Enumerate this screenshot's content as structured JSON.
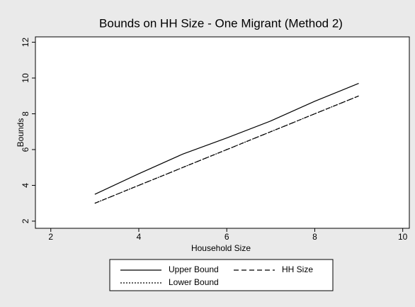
{
  "chart_data": {
    "type": "line",
    "title": "Bounds on HH Size - One Migrant (Method 2)",
    "x_label": "Household Size",
    "y_label": "Bounds",
    "x": [
      3,
      4,
      5,
      6,
      7,
      8,
      9
    ],
    "series": [
      {
        "name": "Upper Bound",
        "color": "#000000",
        "style": "solid",
        "values": [
          3.5,
          4.65,
          5.75,
          6.65,
          7.6,
          8.7,
          9.7
        ]
      },
      {
        "name": "HH Size",
        "color": "#000000",
        "style": "dashed",
        "values": [
          3,
          4,
          5,
          6,
          7,
          8,
          9
        ]
      },
      {
        "name": "Lower Bound",
        "color": "#000000",
        "style": "dotted",
        "values": [
          3,
          4,
          5,
          6,
          7,
          8,
          9
        ]
      }
    ],
    "xlim": [
      1.65,
      10.15
    ],
    "xticks": [
      2,
      4,
      6,
      8,
      10
    ],
    "ylim": [
      1.6,
      12.3
    ],
    "yticks": [
      2,
      4,
      6,
      8,
      10,
      12
    ],
    "grid": false
  }
}
